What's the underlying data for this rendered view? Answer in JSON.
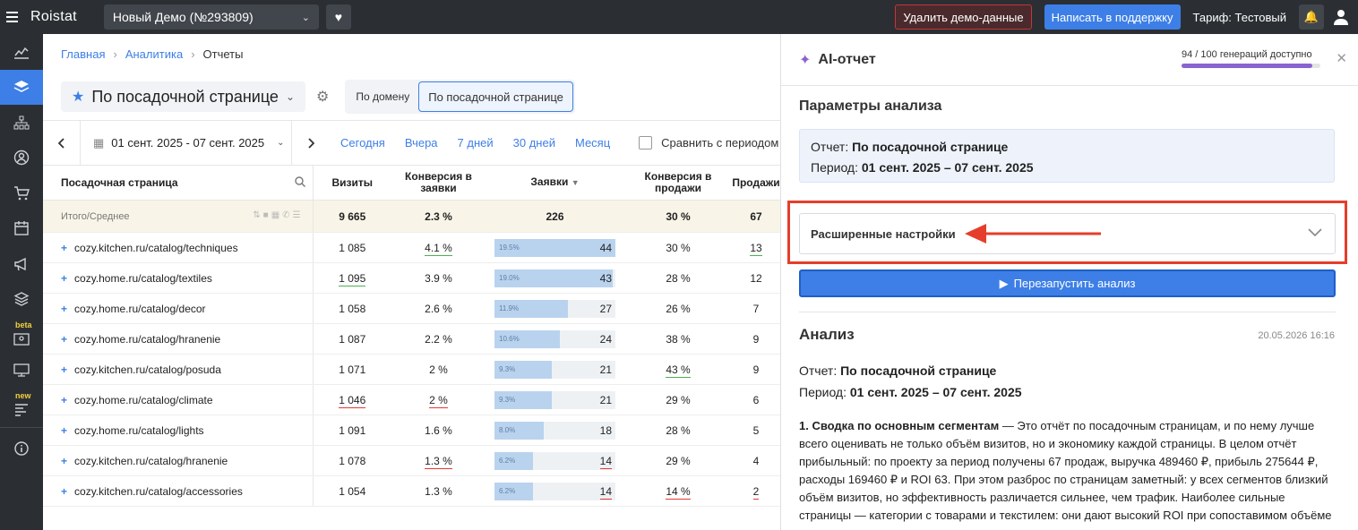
{
  "topbar": {
    "logo": "Roistat",
    "project": "Новый Демо (№293809)",
    "delete_demo": "Удалить демо-данные",
    "support": "Написать в поддержку",
    "tariff": "Тариф: Тестовый"
  },
  "sidebar": {
    "badge_beta": "beta",
    "badge_new": "new"
  },
  "breadcrumbs": {
    "home": "Главная",
    "analytics": "Аналитика",
    "current": "Отчеты"
  },
  "report": {
    "name": "По посадочной странице",
    "tab_domain": "По домену",
    "tab_landing": "По посадочной странице"
  },
  "datebar": {
    "range": "01 сент. 2025 - 07 сент. 2025",
    "today": "Сегодня",
    "yesterday": "Вчера",
    "days7": "7 дней",
    "days30": "30 дней",
    "month": "Месяц",
    "compare": "Сравнить с периодом"
  },
  "table": {
    "headers": {
      "page": "Посадочная страница",
      "visits": "Визиты",
      "conv_leads": "Конверсия в заявки",
      "leads": "Заявки",
      "conv_sales": "Конверсия в продажи",
      "sales": "Продажи"
    },
    "total": {
      "label": "Итого/Среднее",
      "visits": "9 665",
      "conv_leads": "2.3 %",
      "leads": "226",
      "conv_sales": "30 %",
      "sales": "67"
    },
    "rows": [
      {
        "page": "cozy.kitchen.ru/catalog/techniques",
        "visits": "1 085",
        "conv_leads": "4.1 %",
        "lead_share": "19.5%",
        "lead_share_value": 19.5,
        "leads": "44",
        "conv_sales": "30 %",
        "sales": "13"
      },
      {
        "page": "cozy.home.ru/catalog/textiles",
        "visits": "1 095",
        "conv_leads": "3.9 %",
        "lead_share": "19.0%",
        "lead_share_value": 19.0,
        "leads": "43",
        "conv_sales": "28 %",
        "sales": "12"
      },
      {
        "page": "cozy.home.ru/catalog/decor",
        "visits": "1 058",
        "conv_leads": "2.6 %",
        "lead_share": "11.9%",
        "lead_share_value": 11.9,
        "leads": "27",
        "conv_sales": "26 %",
        "sales": "7"
      },
      {
        "page": "cozy.home.ru/catalog/hranenie",
        "visits": "1 087",
        "conv_leads": "2.2 %",
        "lead_share": "10.6%",
        "lead_share_value": 10.6,
        "leads": "24",
        "conv_sales": "38 %",
        "sales": "9"
      },
      {
        "page": "cozy.kitchen.ru/catalog/posuda",
        "visits": "1 071",
        "conv_leads": "2 %",
        "lead_share": "9.3%",
        "lead_share_value": 9.3,
        "leads": "21",
        "conv_sales": "43 %",
        "sales": "9"
      },
      {
        "page": "cozy.home.ru/catalog/climate",
        "visits": "1 046",
        "conv_leads": "2 %",
        "lead_share": "9.3%",
        "lead_share_value": 9.3,
        "leads": "21",
        "conv_sales": "29 %",
        "sales": "6"
      },
      {
        "page": "cozy.home.ru/catalog/lights",
        "visits": "1 091",
        "conv_leads": "1.6 %",
        "lead_share": "8.0%",
        "lead_share_value": 8.0,
        "leads": "18",
        "conv_sales": "28 %",
        "sales": "5"
      },
      {
        "page": "cozy.kitchen.ru/catalog/hranenie",
        "visits": "1 078",
        "conv_leads": "1.3 %",
        "lead_share": "6.2%",
        "lead_share_value": 6.2,
        "leads": "14",
        "conv_sales": "29 %",
        "sales": "4"
      },
      {
        "page": "cozy.kitchen.ru/catalog/accessories",
        "visits": "1 054",
        "conv_leads": "1.3 %",
        "lead_share": "6.2%",
        "lead_share_value": 6.2,
        "leads": "14",
        "conv_sales": "14 %",
        "sales": "2"
      }
    ]
  },
  "panel": {
    "title": "AI-отчет",
    "generations": "94 / 100 генераций доступно",
    "generations_used": 94,
    "generations_total": 100,
    "params_title": "Параметры анализа",
    "report_label": "Отчет:",
    "report_value": "По посадочной странице",
    "period_label": "Период:",
    "period_value": "01 сент. 2025 – 07 сент. 2025",
    "advanced": "Расширенные настройки",
    "rerun": "Перезапустить анализ",
    "analysis_title": "Анализ",
    "analysis_date": "20.05.2026 16:16",
    "analysis_report_label": "Отчет:",
    "analysis_report_value": "По посадочной странице",
    "analysis_period_label": "Период:",
    "analysis_period_value": "01 сент. 2025 – 07 сент. 2025",
    "analysis_heading": "1. Сводка по основным сегментам",
    "analysis_body": " — Это отчёт по посадочным страницам, и по нему лучше всего оценивать не только объём визитов, но и экономику каждой страницы. В целом отчёт прибыльный: по проекту за период получены 67 продаж, выручка 489460 ₽, прибыль 275644 ₽, расходы 169460 ₽ и ROI 63. При этом разброс по страницам заметный: у всех сегментов близкий объём визитов, но эффективность различается сильнее, чем трафик. Наиболее сильные страницы — категории с товарами и текстилем: они дают высокий ROI при сопоставимом объёме визитов."
  },
  "colors": {
    "accent": "#3d7fe6",
    "highlight": "#e53e2b",
    "ai": "#8a63d2"
  }
}
